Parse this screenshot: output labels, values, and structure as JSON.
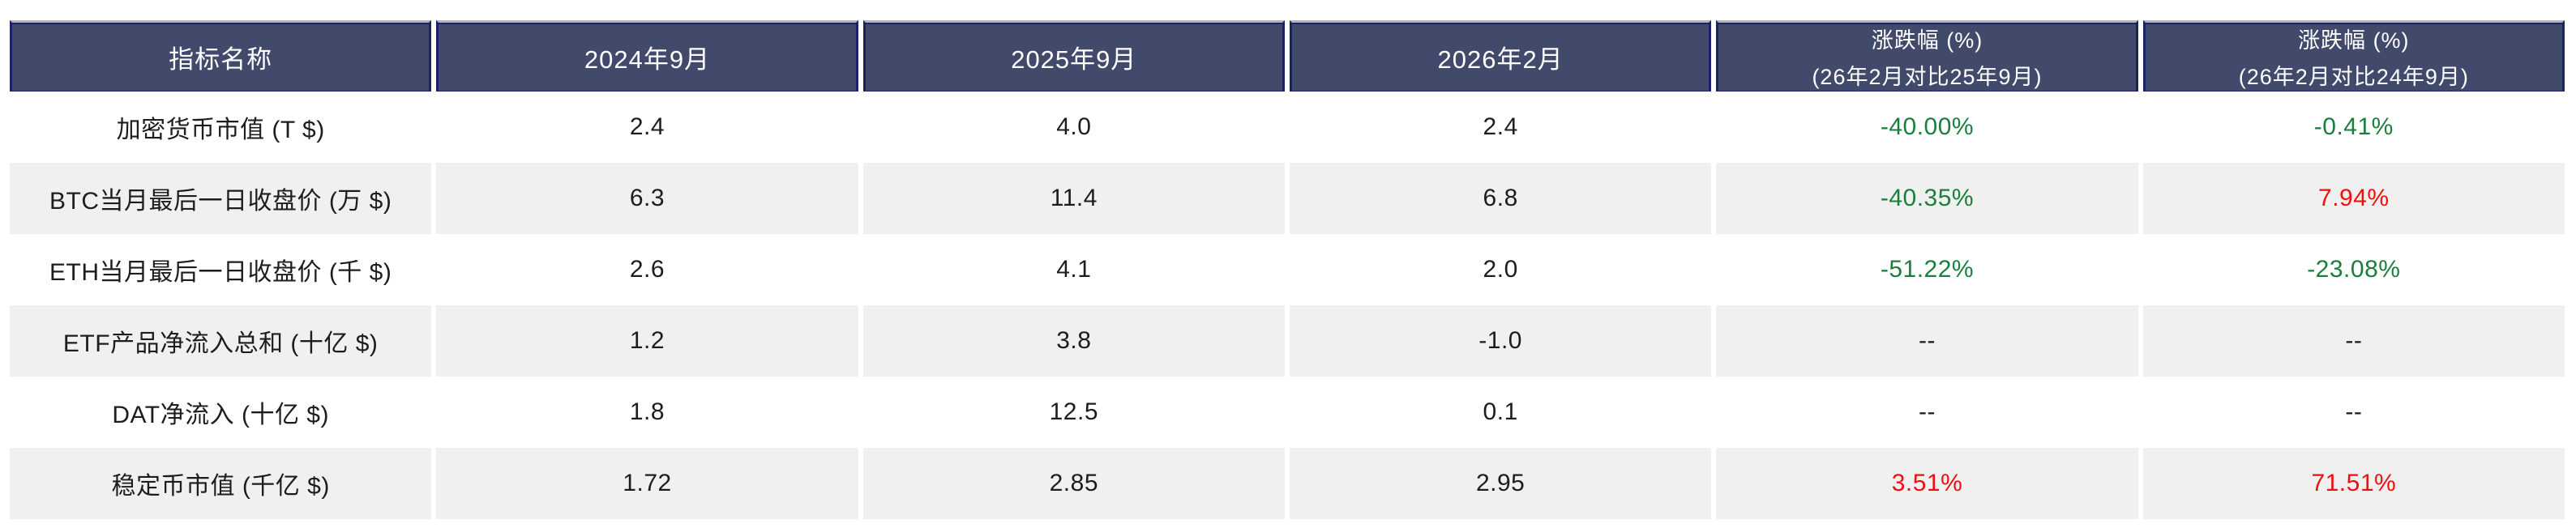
{
  "colors": {
    "header_background": "#424a6c",
    "header_border": "#1c2365",
    "header_top_line": "#b4b4bf",
    "row_stripe": "#f0f0f0",
    "row_plain": "#ffffff",
    "decline_green": "#1a7f3c",
    "rise_red": "#f40d0d",
    "text": "#1d1d1d"
  },
  "table": {
    "columns": [
      {
        "label": "指标名称",
        "sublabel": ""
      },
      {
        "label": "2024年9月",
        "sublabel": ""
      },
      {
        "label": "2025年9月",
        "sublabel": ""
      },
      {
        "label": "2026年2月",
        "sublabel": ""
      },
      {
        "label": "涨跌幅 (%)",
        "sublabel": "(26年2月对比25年9月)"
      },
      {
        "label": "涨跌幅 (%)",
        "sublabel": "(26年2月对比24年9月)"
      }
    ],
    "rows": [
      {
        "name": "加密货币市值 (T $)",
        "v2024": "2.4",
        "v2025": "4.0",
        "v2026": "2.4",
        "chg1": "-40.00%",
        "chg2": "-0.41%",
        "chg1_color": "green",
        "chg2_color": "green"
      },
      {
        "name": "BTC当月最后一日收盘价 (万 $)",
        "v2024": "6.3",
        "v2025": "11.4",
        "v2026": "6.8",
        "chg1": "-40.35%",
        "chg2": "7.94%",
        "chg1_color": "green",
        "chg2_color": "red"
      },
      {
        "name": "ETH当月最后一日收盘价 (千 $)",
        "v2024": "2.6",
        "v2025": "4.1",
        "v2026": "2.0",
        "chg1": "-51.22%",
        "chg2": "-23.08%",
        "chg1_color": "green",
        "chg2_color": "green"
      },
      {
        "name": "ETF产品净流入总和 (十亿 $)",
        "v2024": "1.2",
        "v2025": "3.8",
        "v2026": "-1.0",
        "chg1": "--",
        "chg2": "--",
        "chg1_color": "neutral",
        "chg2_color": "neutral"
      },
      {
        "name": "DAT净流入 (十亿 $)",
        "v2024": "1.8",
        "v2025": "12.5",
        "v2026": "0.1",
        "chg1": "--",
        "chg2": "--",
        "chg1_color": "neutral",
        "chg2_color": "neutral"
      },
      {
        "name": "稳定币市值 (千亿 $)",
        "v2024": "1.72",
        "v2025": "2.85",
        "v2026": "2.95",
        "chg1": "3.51%",
        "chg2": "71.51%",
        "chg1_color": "red",
        "chg2_color": "red"
      }
    ]
  },
  "chart_data": {
    "type": "table",
    "title": "",
    "columns": [
      "指标名称",
      "2024年9月",
      "2025年9月",
      "2026年2月",
      "涨跌幅 (%) (26年2月对比25年9月)",
      "涨跌幅 (%) (26年2月对比24年9月)"
    ],
    "rows": [
      {
        "indicator": "加密货币市值 (T $)",
        "sep_2024": 2.4,
        "sep_2025": 4.0,
        "feb_2026": 2.4,
        "chg_feb26_vs_sep25_pct": -40.0,
        "chg_feb26_vs_sep24_pct": -0.41
      },
      {
        "indicator": "BTC当月最后一日收盘价 (万 $)",
        "sep_2024": 6.3,
        "sep_2025": 11.4,
        "feb_2026": 6.8,
        "chg_feb26_vs_sep25_pct": -40.35,
        "chg_feb26_vs_sep24_pct": 7.94
      },
      {
        "indicator": "ETH当月最后一日收盘价 (千 $)",
        "sep_2024": 2.6,
        "sep_2025": 4.1,
        "feb_2026": 2.0,
        "chg_feb26_vs_sep25_pct": -51.22,
        "chg_feb26_vs_sep24_pct": -23.08
      },
      {
        "indicator": "ETF产品净流入总和 (十亿 $)",
        "sep_2024": 1.2,
        "sep_2025": 3.8,
        "feb_2026": -1.0,
        "chg_feb26_vs_sep25_pct": null,
        "chg_feb26_vs_sep24_pct": null
      },
      {
        "indicator": "DAT净流入 (十亿 $)",
        "sep_2024": 1.8,
        "sep_2025": 12.5,
        "feb_2026": 0.1,
        "chg_feb26_vs_sep25_pct": null,
        "chg_feb26_vs_sep24_pct": null
      },
      {
        "indicator": "稳定币市值 (千亿 $)",
        "sep_2024": 1.72,
        "sep_2025": 2.85,
        "feb_2026": 2.95,
        "chg_feb26_vs_sep25_pct": 3.51,
        "chg_feb26_vs_sep24_pct": 71.51
      }
    ]
  }
}
